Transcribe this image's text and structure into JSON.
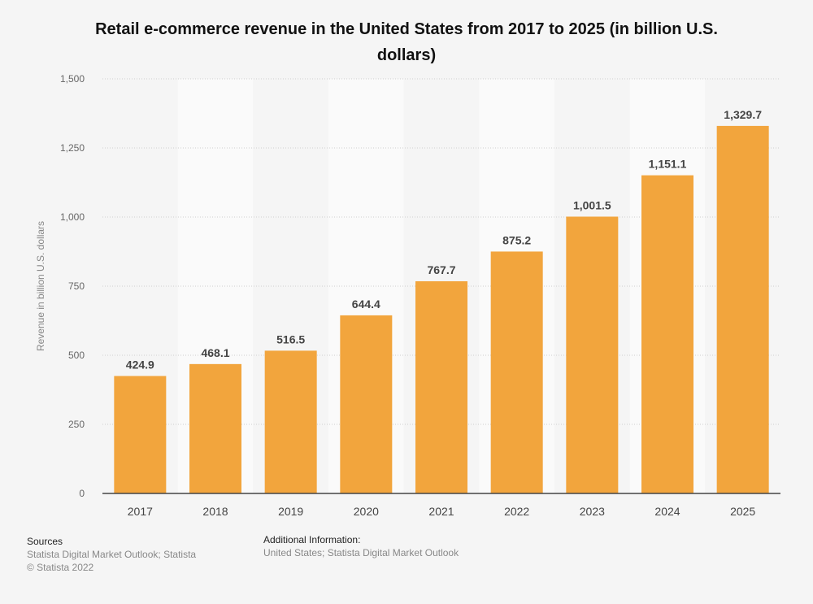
{
  "chart_data": {
    "type": "bar",
    "title": "Retail e-commerce revenue in the United States from 2017 to 2025 (in billion U.S. dollars)",
    "xlabel": "",
    "ylabel": "Revenue in billion U.S. dollars",
    "categories": [
      "2017",
      "2018",
      "2019",
      "2020",
      "2021",
      "2022",
      "2023",
      "2024",
      "2025"
    ],
    "values": [
      424.9,
      468.1,
      516.5,
      644.4,
      767.7,
      875.2,
      1001.5,
      1151.1,
      1329.7
    ],
    "value_labels": [
      "424.9",
      "468.1",
      "516.5",
      "644.4",
      "767.7",
      "875.2",
      "1,001.5",
      "1,151.1",
      "1,329.7"
    ],
    "ylim": [
      0,
      1500
    ],
    "yticks": [
      0,
      250,
      500,
      750,
      1000,
      1250,
      1500
    ],
    "ytick_labels": [
      "0",
      "250",
      "500",
      "750",
      "1,000",
      "1,250",
      "1,500"
    ],
    "grid": true,
    "bar_color": "#f2a53d"
  },
  "footer": {
    "sources_heading": "Sources",
    "sources_text": "Statista Digital Market Outlook; Statista",
    "copyright": "© Statista 2022",
    "additional_heading": "Additional Information:",
    "additional_text": "United States; Statista Digital Market Outlook"
  }
}
